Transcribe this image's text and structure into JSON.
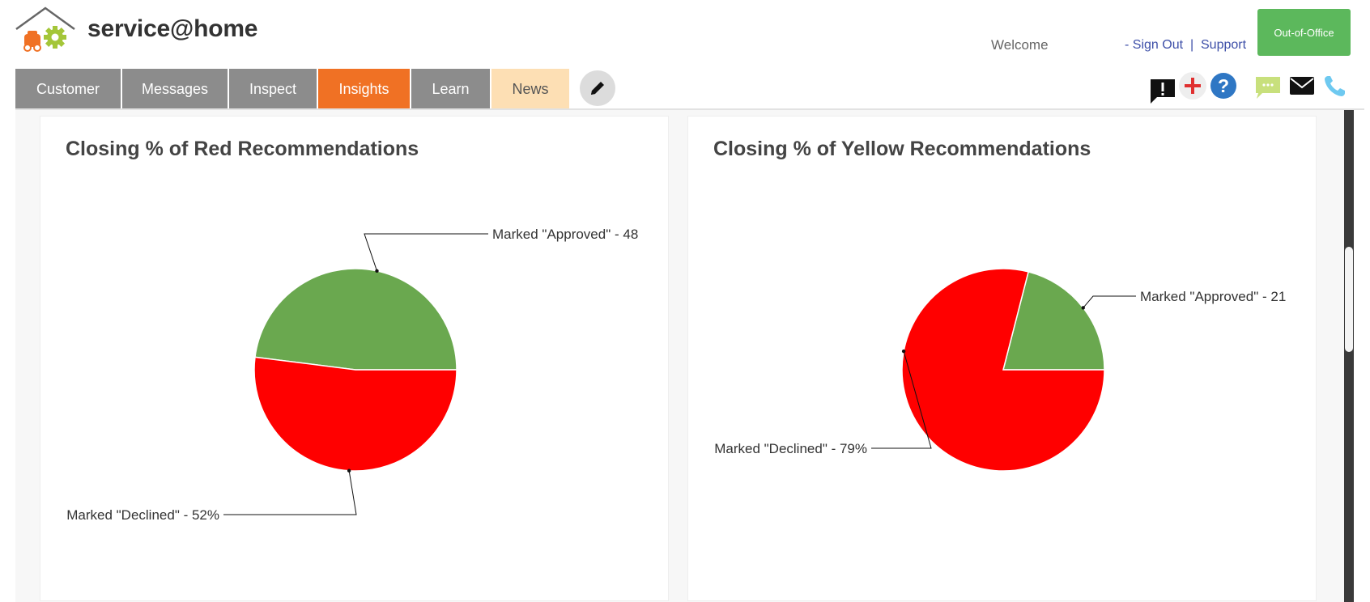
{
  "header": {
    "brand": "service@home",
    "welcome": "Welcome",
    "sign_out": "- Sign Out",
    "separator": "|",
    "support": "Support",
    "out_of_office": "Out-of-Office"
  },
  "nav": {
    "tabs": [
      {
        "label": "Customer",
        "active": false
      },
      {
        "label": "Messages",
        "active": false
      },
      {
        "label": "Inspect",
        "active": false
      },
      {
        "label": "Insights",
        "active": true
      },
      {
        "label": "Learn",
        "active": false
      },
      {
        "label": "News",
        "active": false
      }
    ],
    "edit_icon": "pencil-icon"
  },
  "toolbar_icons": [
    "alert-icon",
    "plus-icon",
    "help-icon",
    "chat-icon",
    "mail-icon",
    "phone-icon"
  ],
  "colors": {
    "accent": "#f07124",
    "tab_default": "#8c8c8c",
    "news_tab": "#fddfb4",
    "out_of_office": "#5cb85c",
    "approved": "#6aa84f",
    "declined": "#ff0000",
    "link": "#3d4fa8"
  },
  "chart_data": [
    {
      "type": "pie",
      "title": "Closing % of Red Recommendations",
      "slices": [
        {
          "label": "Marked \"Approved\" - 48",
          "value": 48,
          "color": "#6aa84f"
        },
        {
          "label": "Marked \"Declined\" - 52%",
          "value": 52,
          "color": "#ff0000"
        }
      ]
    },
    {
      "type": "pie",
      "title": "Closing % of Yellow Recommendations",
      "slices": [
        {
          "label": "Marked \"Approved\" - 21",
          "value": 21,
          "color": "#6aa84f"
        },
        {
          "label": "Marked \"Declined\" - 79%",
          "value": 79,
          "color": "#ff0000"
        }
      ]
    }
  ]
}
